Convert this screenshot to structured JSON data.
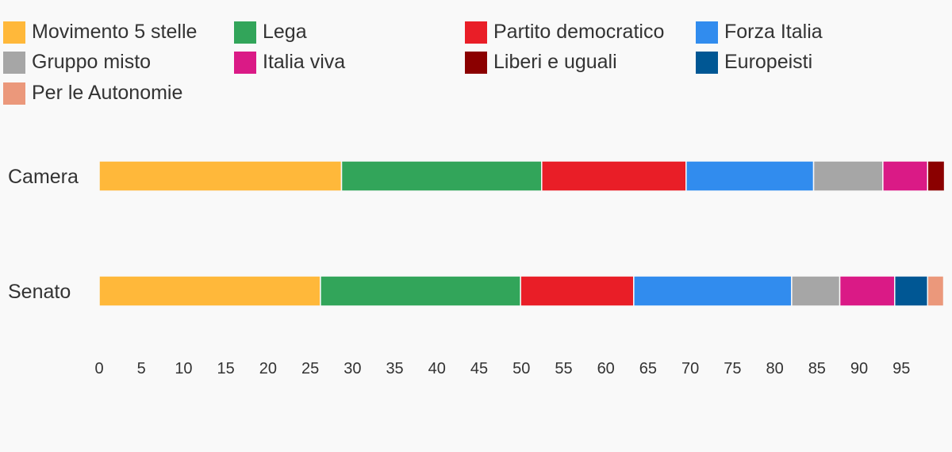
{
  "chart_data": {
    "type": "bar",
    "orientation": "horizontal",
    "stacked": true,
    "title": "",
    "xlabel": "",
    "ylabel": "",
    "xlim": [
      0,
      100
    ],
    "x_ticks": [
      0,
      5,
      10,
      15,
      20,
      25,
      30,
      35,
      40,
      45,
      50,
      55,
      60,
      65,
      70,
      75,
      80,
      85,
      90,
      95
    ],
    "categories": [
      "Camera",
      "Senato"
    ],
    "legend_position": "top",
    "series": [
      {
        "name": "Movimento 5 stelle",
        "color": "#ffb83a",
        "values": [
          28.7,
          26.2
        ]
      },
      {
        "name": "Lega",
        "color": "#32a55a",
        "values": [
          23.7,
          23.7
        ]
      },
      {
        "name": "Partito democratico",
        "color": "#e91e27",
        "values": [
          17.1,
          13.4
        ]
      },
      {
        "name": "Forza Italia",
        "color": "#318cee",
        "values": [
          15.1,
          18.7
        ]
      },
      {
        "name": "Gruppo misto",
        "color": "#a6a6a6",
        "values": [
          8.2,
          5.7
        ]
      },
      {
        "name": "Italia viva",
        "color": "#da1a86",
        "values": [
          5.3,
          6.5
        ]
      },
      {
        "name": "Liberi e uguali",
        "color": "#8b0000",
        "values": [
          2.0,
          0
        ]
      },
      {
        "name": "Europeisti",
        "color": "#005794",
        "values": [
          0,
          3.9
        ]
      },
      {
        "name": "Per le Autonomie",
        "color": "#eb987b",
        "values": [
          0,
          1.9
        ]
      }
    ]
  }
}
